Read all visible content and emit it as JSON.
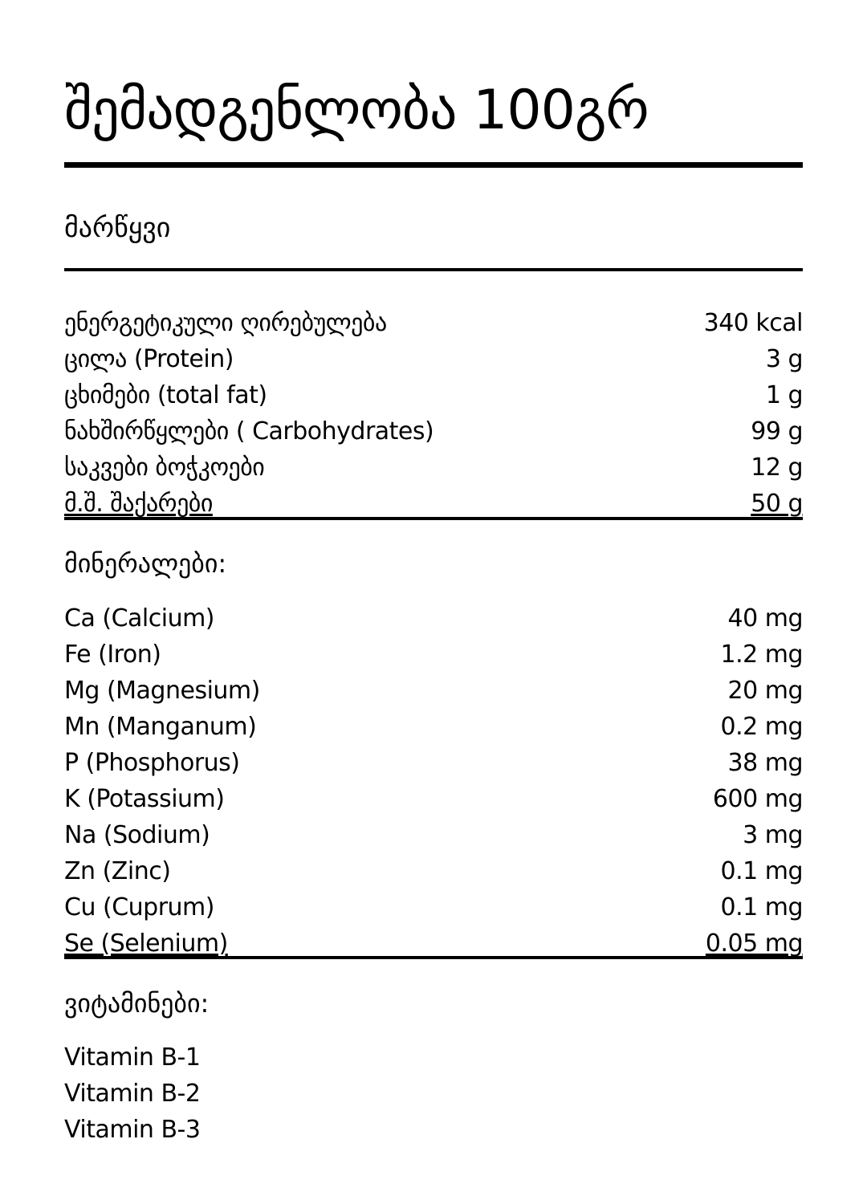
{
  "title": "შემადგენლობა 100გრ",
  "product": "მარწყვი",
  "nutrition": [
    {
      "label": "ენერგეტიკული ღირებულება",
      "value": "340 kcal"
    },
    {
      "label": "ცილა (Protein)",
      "value": "3 g"
    },
    {
      "label": "ცხიმები (total fat)",
      "value": "1 g"
    },
    {
      "label": "ნახშირწყლები ( Carbohydrates)",
      "value": "99 g"
    },
    {
      "label": "საკვები ბოჭკოები",
      "value": "12 g"
    },
    {
      "label": "მ.შ. შაქარები",
      "value": "50 g"
    }
  ],
  "minerals": {
    "heading": "მინერალები:",
    "items": [
      {
        "label": "Ca (Calcium)",
        "value": "40 mg"
      },
      {
        "label": "Fe (Iron)",
        "value": "1.2 mg"
      },
      {
        "label": "Mg (Magnesium)",
        "value": "20 mg"
      },
      {
        "label": "Mn (Manganum)",
        "value": "0.2 mg"
      },
      {
        "label": "P (Phosphorus)",
        "value": "38 mg"
      },
      {
        "label": "K (Potassium)",
        "value": "600 mg"
      },
      {
        "label": "Na (Sodium)",
        "value": "3 mg"
      },
      {
        "label": "Zn (Zinc)",
        "value": "0.1 mg"
      },
      {
        "label": "Cu (Cuprum)",
        "value": "0.1 mg"
      },
      {
        "label": "Se (Selenium)",
        "value": "0.05 mg"
      }
    ]
  },
  "vitamins": {
    "heading": "ვიტამინები:",
    "items": [
      "Vitamin B-1",
      "Vitamin B-2",
      "Vitamin B-3"
    ]
  }
}
